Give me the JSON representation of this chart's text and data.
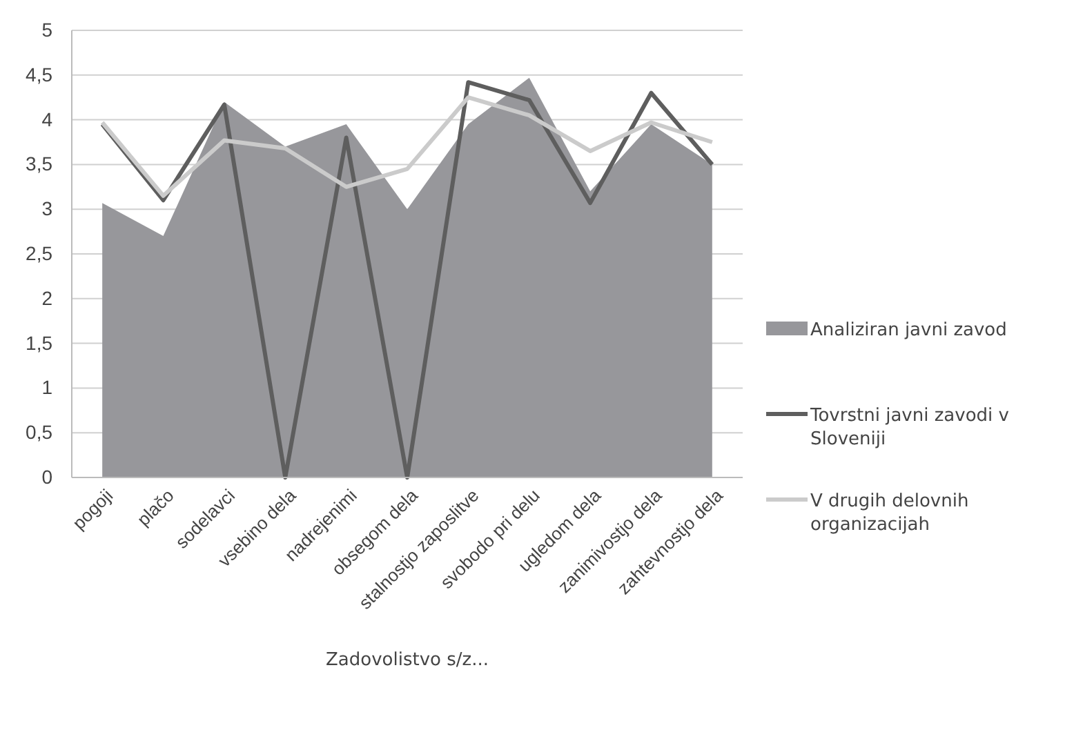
{
  "chart_data": {
    "type": "area",
    "xlabel": "Zadovolistvo s/z...",
    "categories": [
      "pogoji",
      "plačo",
      "sodelavci",
      "vsebino dela",
      "nadrejenimi",
      "obsegom dela",
      "stalnostjo zaposlitve",
      "svobodo pri delu",
      "ugledom dela",
      "zanimivostjo dela",
      "zahtevnostjo dela"
    ],
    "series": [
      {
        "name": "Analiziran javni zavod",
        "color": "#97979b",
        "values": [
          3.07,
          2.7,
          4.2,
          3.7,
          3.95,
          3.0,
          3.95,
          4.47,
          3.2,
          3.95,
          3.5
        ]
      },
      {
        "name": "Tovrstni javni zavodi v Sloveniji",
        "type": "line",
        "color": "#5e5e5e",
        "values": [
          3.95,
          3.1,
          4.17,
          0,
          3.8,
          0,
          4.42,
          4.22,
          3.07,
          4.3,
          3.5
        ]
      },
      {
        "name": "V drugih delovnih organizacijah",
        "type": "line",
        "color": "#cbcbcb",
        "values": [
          3.97,
          3.15,
          3.77,
          3.68,
          3.25,
          3.45,
          4.25,
          4.05,
          3.65,
          3.97,
          3.75
        ]
      }
    ],
    "ylim": [
      0,
      5
    ],
    "yticks": [
      0,
      {
        "value": 0.5,
        "label": "0,5"
      },
      1,
      {
        "value": 1.5,
        "label": "1,5"
      },
      2,
      {
        "value": 2.5,
        "label": "2,5"
      },
      3,
      {
        "value": 3.5,
        "label": "3,5"
      },
      4,
      {
        "value": 4.5,
        "label": "4,5"
      },
      5
    ],
    "grid": "y",
    "legend": "right",
    "marker": "none",
    "line_style": "solid"
  }
}
